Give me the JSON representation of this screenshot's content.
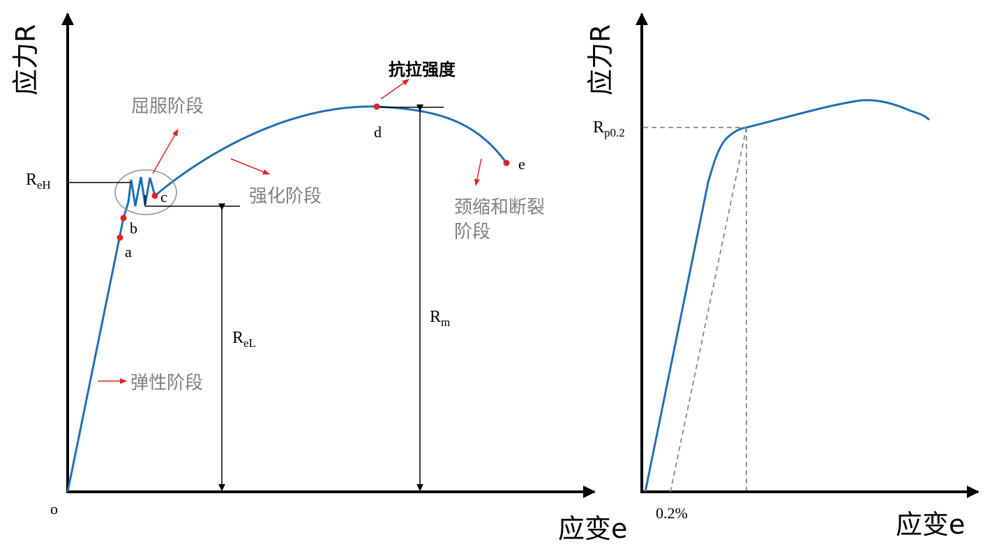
{
  "left_chart": {
    "y_axis_label": "应力R",
    "x_axis_label": "应变e",
    "origin_label": "o",
    "stages": {
      "elastic": "弹性阶段",
      "yield": "屈服阶段",
      "strengthening": "强化阶段",
      "necking_line1": "颈缩和断裂",
      "necking_line2": "阶段",
      "tensile_strength": "抗拉强度"
    },
    "points": [
      "a",
      "b",
      "c",
      "d",
      "e"
    ],
    "levels": {
      "ReH_main": "R",
      "ReH_sub": "eH",
      "ReL_main": "R",
      "ReL_sub": "eL",
      "Rm_main": "R",
      "Rm_sub": "m"
    }
  },
  "right_chart": {
    "y_axis_label": "应力R",
    "x_axis_label": "应变e",
    "rp_main": "R",
    "rp_sub": "p0.2",
    "offset_label": "0.2%"
  },
  "colors": {
    "curve": "#1f6fb5",
    "axis": "#000000",
    "arrow_red": "#e02020",
    "stage_text": "#808080",
    "dashed": "#888888",
    "circle": "#909090"
  }
}
